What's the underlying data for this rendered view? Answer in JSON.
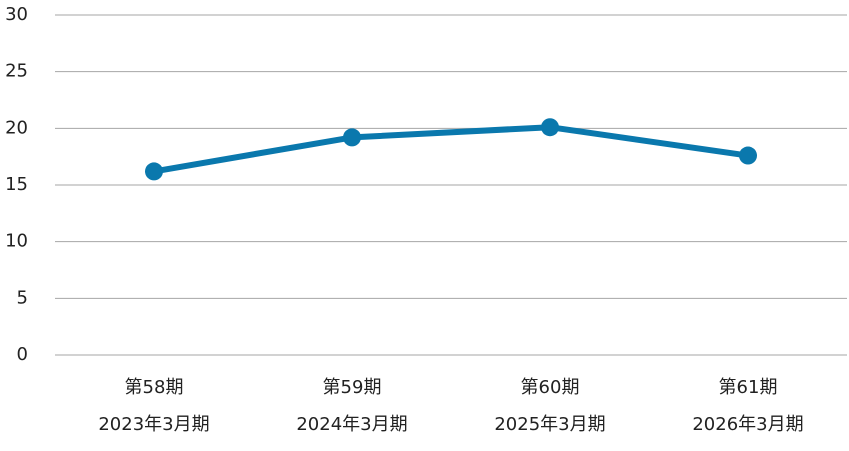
{
  "chart_data": {
    "type": "line",
    "categories": [
      [
        "第58期",
        "2023年3月期"
      ],
      [
        "第59期",
        "2024年3月期"
      ],
      [
        "第60期",
        "2025年3月期"
      ],
      [
        "第61期",
        "2026年3月期"
      ]
    ],
    "values": [
      16.2,
      19.2,
      20.1,
      17.6
    ],
    "color": "#0a78ad",
    "ylim": [
      0,
      30
    ],
    "yticks": [
      0,
      5,
      10,
      15,
      20,
      25,
      30
    ],
    "grid": true
  }
}
